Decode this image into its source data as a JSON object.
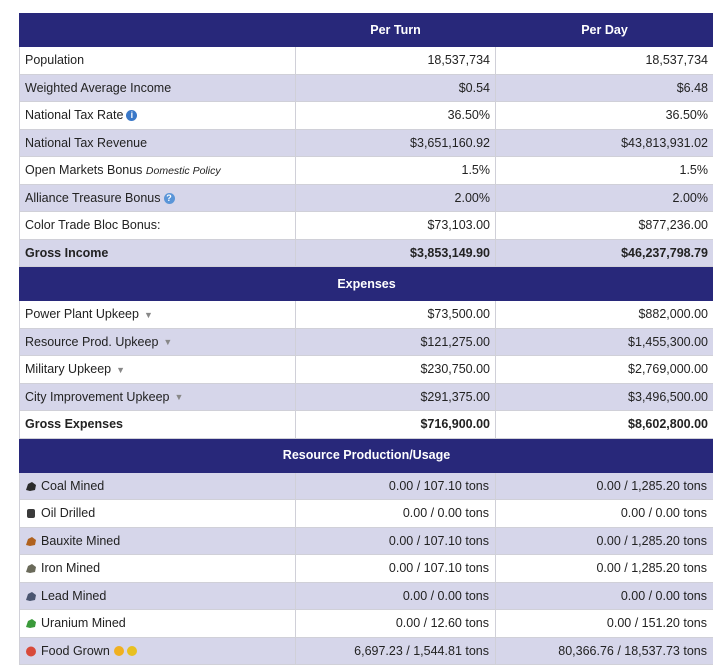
{
  "header": {
    "blank": "",
    "per_turn": "Per Turn",
    "per_day": "Per Day"
  },
  "income_rows": [
    {
      "label": "Population",
      "turn": "18,537,734",
      "day": "18,537,734"
    },
    {
      "label": "Weighted Average Income",
      "turn": "$0.54",
      "day": "$6.48"
    },
    {
      "label": "National Tax Rate",
      "turn": "36.50%",
      "day": "36.50%",
      "icon": "info-icon"
    },
    {
      "label": "National Tax Revenue",
      "turn": "$3,651,160.92",
      "day": "$43,813,931.02"
    },
    {
      "label": "Open Markets Bonus",
      "note": "Domestic Policy",
      "turn": "1.5%",
      "day": "1.5%"
    },
    {
      "label": "Alliance Treasure Bonus",
      "turn": "2.00%",
      "day": "2.00%",
      "icon": "help-icon"
    },
    {
      "label": "Color Trade Bloc Bonus:",
      "turn": "$73,103.00",
      "day": "$877,236.00"
    }
  ],
  "gross_income": {
    "label": "Gross Income",
    "turn": "$3,853,149.90",
    "day": "$46,237,798.79"
  },
  "expenses_title": "Expenses",
  "expense_rows": [
    {
      "label": "Power Plant Upkeep",
      "turn": "$73,500.00",
      "day": "$882,000.00"
    },
    {
      "label": "Resource Prod. Upkeep",
      "turn": "$121,275.00",
      "day": "$1,455,300.00"
    },
    {
      "label": "Military Upkeep",
      "turn": "$230,750.00",
      "day": "$2,769,000.00"
    },
    {
      "label": "City Improvement Upkeep",
      "turn": "$291,375.00",
      "day": "$3,496,500.00"
    }
  ],
  "gross_expenses": {
    "label": "Gross Expenses",
    "turn": "$716,900.00",
    "day": "$8,602,800.00"
  },
  "resource_title": "Resource Production/Usage",
  "resource_rows": [
    {
      "label": "Coal Mined",
      "icon": "coal-icon",
      "color": "#2b2b2b",
      "turn": "0.00 / 107.10 tons",
      "day": "0.00 / 1,285.20 tons"
    },
    {
      "label": "Oil Drilled",
      "icon": "oil-barrel-icon",
      "color": "#3a3a3a",
      "turn": "0.00 / 0.00 tons",
      "day": "0.00 / 0.00 tons"
    },
    {
      "label": "Bauxite Mined",
      "icon": "bauxite-icon",
      "color": "#b0621e",
      "turn": "0.00 / 107.10 tons",
      "day": "0.00 / 1,285.20 tons"
    },
    {
      "label": "Iron Mined",
      "icon": "iron-icon",
      "color": "#6a6a5a",
      "turn": "0.00 / 107.10 tons",
      "day": "0.00 / 1,285.20 tons"
    },
    {
      "label": "Lead Mined",
      "icon": "lead-icon",
      "color": "#4a5570",
      "turn": "0.00 / 0.00 tons",
      "day": "0.00 / 0.00 tons"
    },
    {
      "label": "Uranium Mined",
      "icon": "uranium-icon",
      "color": "#3a9a3a",
      "turn": "0.00 / 12.60 tons",
      "day": "0.00 / 151.20 tons"
    },
    {
      "label": "Food Grown",
      "icon": "food-icon",
      "color": "#d84a3a",
      "turn": "6,697.23 / 1,544.81 tons",
      "day": "80,366.76 / 18,537.73 tons"
    }
  ]
}
